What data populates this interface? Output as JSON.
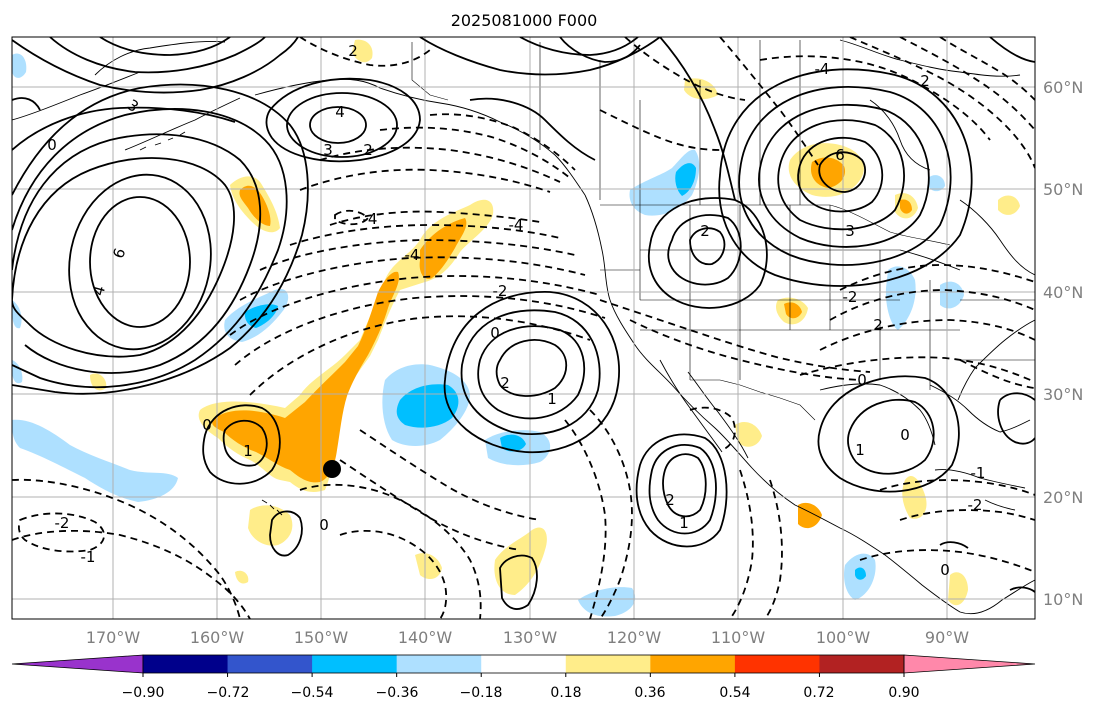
{
  "title": "2025081000 F000",
  "map": {
    "lon_labels": [
      "170°W",
      "160°W",
      "150°W",
      "140°W",
      "130°W",
      "120°W",
      "110°W",
      "100°W",
      "90°W"
    ],
    "lat_labels": [
      "10°N",
      "20°N",
      "30°N",
      "40°N",
      "50°N",
      "60°N"
    ],
    "contour_labels": [
      "6",
      "4",
      "3",
      "0",
      "4",
      "3",
      "2",
      "2",
      "-4",
      "-4",
      "-4",
      "-2",
      "0",
      "2",
      "1",
      "-2",
      "-1",
      "0",
      "1",
      "0",
      "2",
      "1",
      "2",
      "6",
      "3",
      "-4",
      "-2",
      "2",
      "2",
      "0",
      "0",
      "1",
      "0",
      "-1",
      "-2"
    ],
    "marker": "point",
    "colors": {
      "positive_1": "#ffed8a",
      "positive_2": "#ffa500",
      "negative_1": "#aee0ff",
      "negative_2": "#00bfff",
      "contour": "#000000",
      "grid": "#b0b0b0"
    }
  },
  "colorbar": {
    "labels": [
      "−0.90",
      "−0.72",
      "−0.54",
      "−0.36",
      "−0.18",
      "0.18",
      "0.36",
      "0.54",
      "0.72",
      "0.90"
    ],
    "colors": [
      "#9933cc",
      "#00008b",
      "#3355cc",
      "#00bfff",
      "#aee0ff",
      "#ffffff",
      "#ffed8a",
      "#ffa500",
      "#ff3300",
      "#b22222",
      "#ff88aa"
    ]
  }
}
